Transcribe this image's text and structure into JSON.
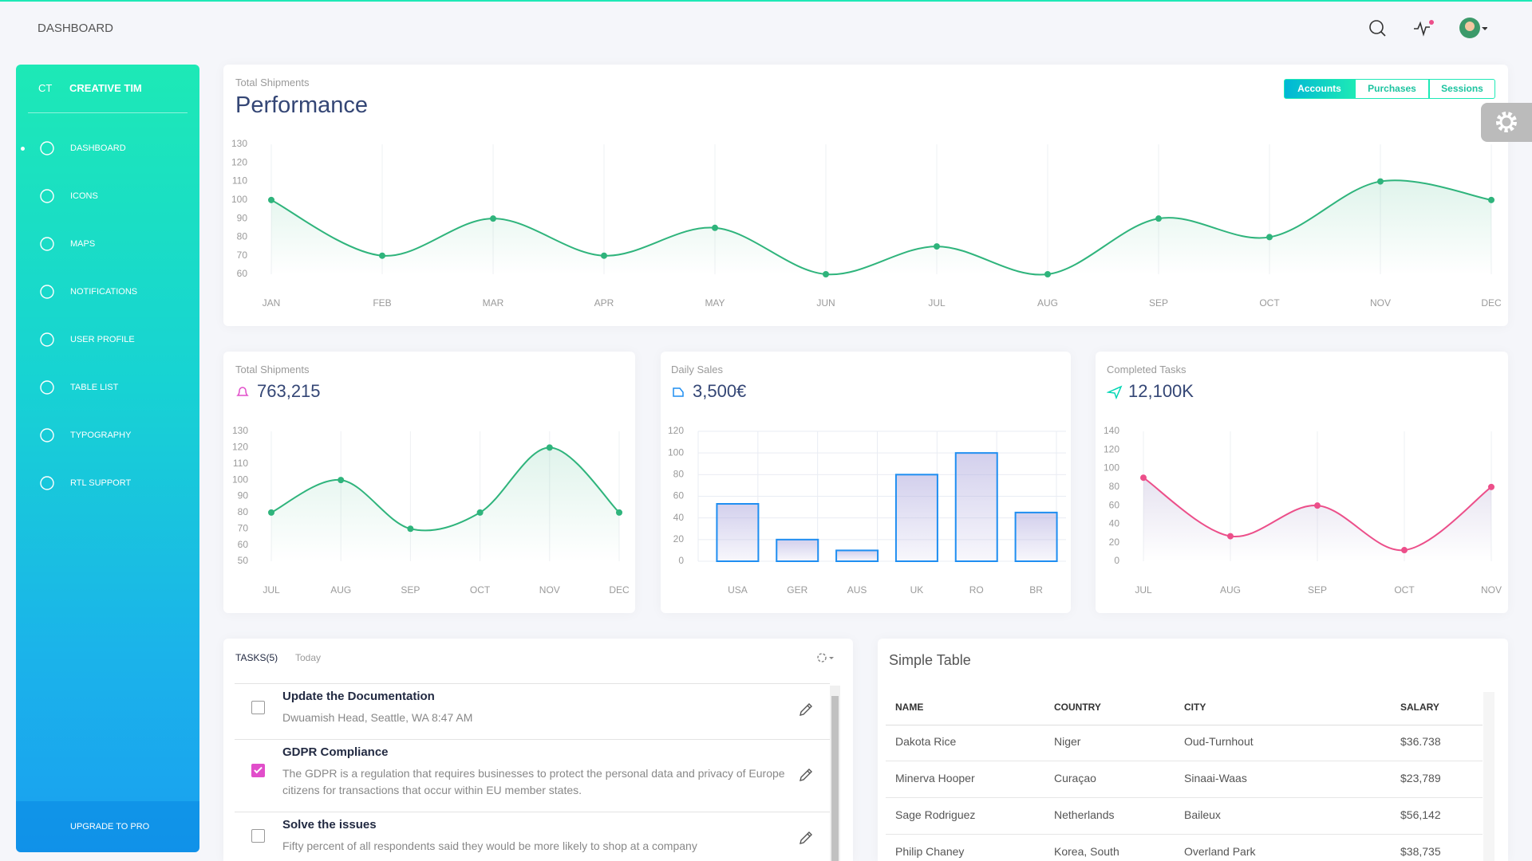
{
  "header": {
    "title": "DASHBOARD"
  },
  "sidebar": {
    "logo_short": "CT",
    "logo_text": "CREATIVE TIM",
    "menu": [
      "DASHBOARD",
      "ICONS",
      "MAPS",
      "NOTIFICATIONS",
      "USER PROFILE",
      "TABLE LIST",
      "TYPOGRAPHY",
      "RTL SUPPORT"
    ],
    "upgrade": "UPGRADE TO PRO"
  },
  "chart_data": [
    {
      "type": "line",
      "subtitle": "Total Shipments",
      "title": "Performance",
      "tabs": [
        "Accounts",
        "Purchases",
        "Sessions"
      ],
      "categories": [
        "JAN",
        "FEB",
        "MAR",
        "APR",
        "MAY",
        "JUN",
        "JUL",
        "AUG",
        "SEP",
        "OCT",
        "NOV",
        "DEC"
      ],
      "values": [
        100,
        70,
        90,
        70,
        85,
        60,
        75,
        60,
        90,
        80,
        110,
        100
      ],
      "color": "#2fb47c",
      "ylim": [
        60,
        130
      ],
      "yticks": [
        60,
        70,
        80,
        90,
        100,
        110,
        120,
        130
      ]
    },
    {
      "type": "line",
      "subtitle": "Total Shipments",
      "title": "763,215",
      "categories": [
        "JUL",
        "AUG",
        "SEP",
        "OCT",
        "NOV",
        "DEC"
      ],
      "values": [
        80,
        100,
        70,
        80,
        120,
        80
      ],
      "color": "#2fb47c",
      "ylim": [
        50,
        130
      ],
      "yticks": [
        50,
        60,
        70,
        80,
        90,
        100,
        110,
        120,
        130
      ]
    },
    {
      "type": "bar",
      "subtitle": "Daily Sales",
      "title": "3,500€",
      "categories": [
        "USA",
        "GER",
        "AUS",
        "UK",
        "RO",
        "BR"
      ],
      "values": [
        53,
        20,
        10,
        80,
        100,
        45
      ],
      "color": "#1f8ef1",
      "ylim": [
        0,
        120
      ],
      "yticks": [
        0,
        20,
        40,
        60,
        80,
        100,
        120
      ],
      "grid": true
    },
    {
      "type": "line",
      "subtitle": "Completed Tasks",
      "title": "12,100K",
      "categories": [
        "JUL",
        "AUG",
        "SEP",
        "OCT",
        "NOV"
      ],
      "values": [
        90,
        27,
        60,
        12,
        80
      ],
      "color": "#ec4f8a",
      "ylim": [
        0,
        140
      ],
      "yticks": [
        0,
        20,
        40,
        60,
        80,
        100,
        120,
        140
      ]
    }
  ],
  "tasks": {
    "title": "TASKS(5)",
    "filter": "Today",
    "items": [
      {
        "title": "Update the Documentation",
        "description": "Dwuamish Head, Seattle, WA 8:47 AM",
        "checked": false
      },
      {
        "title": "GDPR Compliance",
        "description": "The GDPR is a regulation that requires businesses to protect the personal data and privacy of Europe citizens for transactions that occur within EU member states.",
        "checked": true
      },
      {
        "title": "Solve the issues",
        "description": "Fifty percent of all respondents said they would be more likely to shop at a company",
        "checked": false
      }
    ]
  },
  "table": {
    "title": "Simple Table",
    "columns": [
      "NAME",
      "COUNTRY",
      "CITY",
      "SALARY"
    ],
    "rows": [
      [
        "Dakota Rice",
        "Niger",
        "Oud-Turnhout",
        "$36.738"
      ],
      [
        "Minerva Hooper",
        "Curaçao",
        "Sinaai-Waas",
        "$23,789"
      ],
      [
        "Sage Rodriguez",
        "Netherlands",
        "Baileux",
        "$56,142"
      ],
      [
        "Philip Chaney",
        "Korea, South",
        "Overland Park",
        "$38,735"
      ]
    ]
  }
}
